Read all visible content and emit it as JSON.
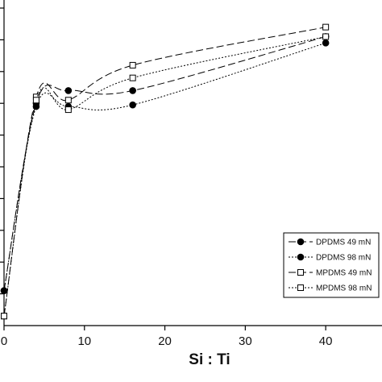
{
  "chart_data": {
    "type": "line",
    "title": "",
    "xlabel": "Si : Ti",
    "ylabel": "",
    "xlim": [
      0,
      47
    ],
    "ylim": [
      0,
      10
    ],
    "x_ticks": [
      0,
      10,
      20,
      30,
      40
    ],
    "x_tick_labels": [
      "0",
      "10",
      "20",
      "30",
      "40"
    ],
    "y_ticks": [
      1,
      2,
      3,
      4,
      5,
      6,
      7,
      8,
      9,
      10
    ],
    "grid": false,
    "legend_position": "bottom-right",
    "series": [
      {
        "name": "DPDMS 49 mN",
        "marker": "filled-circle",
        "dash": "long-dash",
        "x": [
          0,
          4,
          8,
          16,
          40
        ],
        "y": [
          1.1,
          7.0,
          7.4,
          7.4,
          9.1
        ]
      },
      {
        "name": "DPDMS 98 mN",
        "marker": "filled-circle",
        "dash": "dotted",
        "x": [
          0,
          4,
          8,
          16,
          40
        ],
        "y": [
          1.1,
          6.9,
          6.9,
          6.95,
          8.9
        ]
      },
      {
        "name": "MPDMS 49 mN",
        "marker": "open-square",
        "dash": "long-dash",
        "x": [
          0,
          4,
          8,
          16,
          40
        ],
        "y": [
          0.3,
          7.2,
          7.1,
          8.2,
          9.4
        ]
      },
      {
        "name": "MPDMS 98 mN",
        "marker": "open-square",
        "dash": "dotted",
        "x": [
          0,
          4,
          8,
          16,
          40
        ],
        "y": [
          0.3,
          7.1,
          6.8,
          7.8,
          9.1
        ]
      }
    ]
  }
}
